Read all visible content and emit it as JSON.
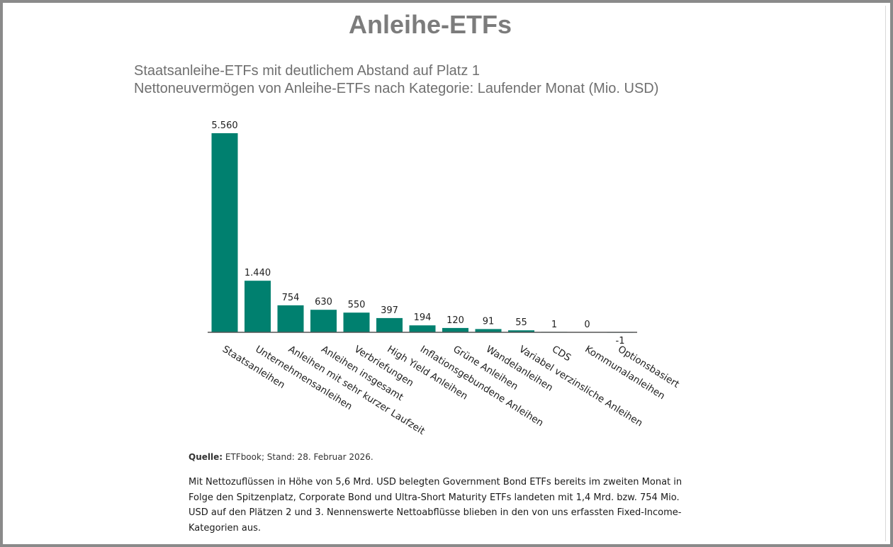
{
  "page": {
    "title": "Anleihe-ETFs",
    "subtitle_line1": "Staatsanleihe-ETFs mit deutlichem Abstand auf Platz 1",
    "subtitle_line2": "Nettoneuvermögen von Anleihe-ETFs nach Kategorie: Laufender Monat (Mio. USD)",
    "source_label": "Quelle:",
    "source_text": "ETFbook; Stand: 28. Februar 2026.",
    "body_text": "Mit Nettozuflüssen in Höhe von 5,6 Mrd. USD belegten Government Bond ETFs bereits im zweiten Monat in Folge den Spitzenplatz, Corporate Bond und Ultra-Short Maturity ETFs landeten mit 1,4 Mrd. bzw. 754 Mio. USD auf den Plätzen 2 und 3. Nennenswerte Nettoabflüsse blieben in den von uns erfassten Fixed-Income-Kategorien aus."
  },
  "chart_data": {
    "type": "bar",
    "categories": [
      "Staatsanleihen",
      "Unternehmensanleihen",
      "Anleihen mit sehr kurzer Laufzeit",
      "Anleihen insgesamt",
      "Verbriefungen",
      "High Yield Anleihen",
      "Inflationsgebundene Anleihen",
      "Grüne Anleihen",
      "Wandelanleihen",
      "Variabel verzinsliche Anleihen",
      "CDS",
      "Kommunalanleihen",
      "Optionsbasiert"
    ],
    "values": [
      5560,
      1440,
      754,
      630,
      550,
      397,
      194,
      120,
      91,
      55,
      1,
      0,
      -1
    ],
    "data_labels": [
      "5.560",
      "1.440",
      "754",
      "630",
      "550",
      "397",
      "194",
      "120",
      "91",
      "55",
      "1",
      "0",
      "-1"
    ],
    "title": "Staatsanleihe-ETFs mit deutlichem Abstand auf Platz 1",
    "subtitle": "Nettoneuvermögen von Anleihe-ETFs nach Kategorie: Laufender Monat (Mio. USD)",
    "xlabel": "",
    "ylabel": "",
    "ylim": [
      0,
      5560
    ],
    "grid": false,
    "legend": "none",
    "bar_color": "#00806f",
    "axis_color": "#555555"
  }
}
